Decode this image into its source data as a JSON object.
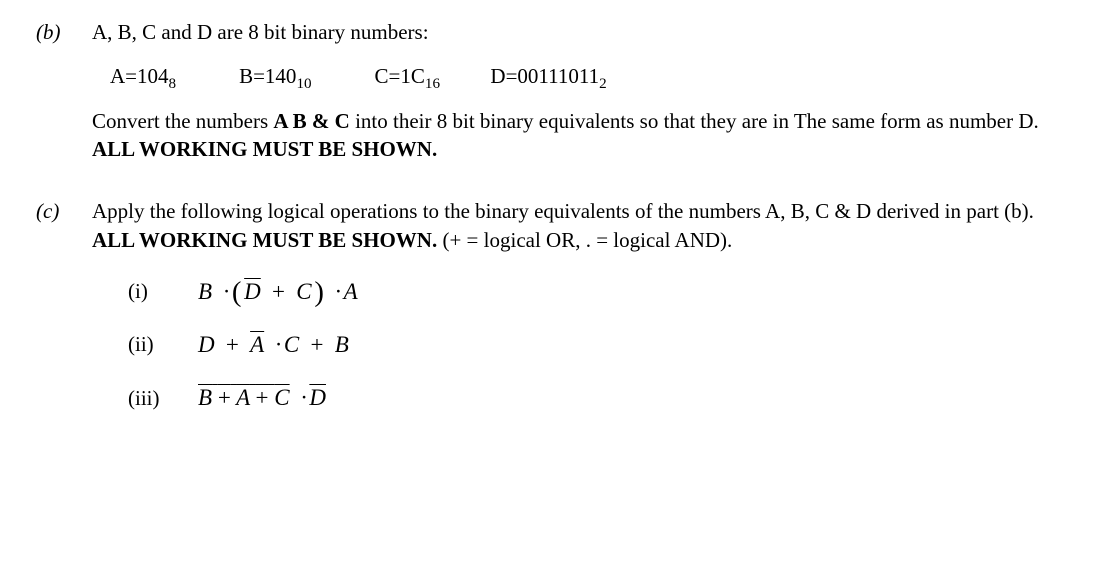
{
  "font": {
    "family": "Times New Roman, serif",
    "size_pt": 16,
    "color": "#000000"
  },
  "background_color": "#ffffff",
  "parts": {
    "b": {
      "label": "(b)",
      "intro": "A, B, C and D are 8 bit binary numbers:",
      "values": {
        "A": {
          "text": "A=104",
          "base": "8"
        },
        "B": {
          "text": "B=140",
          "base": "10"
        },
        "C": {
          "text": "C=1C",
          "base": "16"
        },
        "D": {
          "text": "D=00111011",
          "base": "2"
        }
      },
      "instr_pre": "Convert the numbers ",
      "instr_bold1": "A B & C",
      "instr_mid": " into their 8 bit binary equivalents so that they are in The same form as number D. ",
      "instr_bold2": "ALL WORKING MUST BE SHOWN."
    },
    "c": {
      "label": "(c)",
      "intro_pre": "Apply the following logical operations to the binary equivalents of the numbers A, B, C & D derived in part (b). ",
      "intro_bold": "ALL WORKING MUST BE SHOWN.",
      "intro_post": " (+ = logical OR, . = logical AND).",
      "items": {
        "i": {
          "roman": "(i)"
        },
        "ii": {
          "roman": "(ii)"
        },
        "iii": {
          "roman": "(iii)"
        }
      },
      "expressions": {
        "i_desc": "B · ( D̄ + C ) · A",
        "ii_desc": "D + Ā · C + B",
        "iii_desc": "overline( B + Ā + C ) · D̄"
      }
    }
  }
}
